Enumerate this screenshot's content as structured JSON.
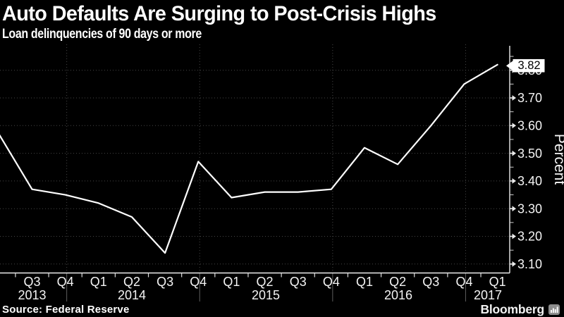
{
  "header": {
    "title": "Auto Defaults Are Surging to Post-Crisis Highs",
    "subtitle": "Loan delinquencies of 90 days or more"
  },
  "footer": {
    "source": "Source: Federal Reserve",
    "attribution": "Bloomberg"
  },
  "chart_data": {
    "type": "line",
    "title": "Auto Defaults Are Surging to Post-Crisis Highs",
    "subtitle": "Loan delinquencies of 90 days or more",
    "ylabel": "Percent",
    "x": [
      "Q2 2013",
      "Q3 2013",
      "Q4 2013",
      "Q1 2014",
      "Q2 2014",
      "Q3 2014",
      "Q4 2014",
      "Q1 2015",
      "Q2 2015",
      "Q3 2015",
      "Q4 2015",
      "Q1 2016",
      "Q2 2016",
      "Q3 2016",
      "Q4 2016",
      "Q1 2017"
    ],
    "values": [
      3.57,
      3.37,
      3.35,
      3.32,
      3.27,
      3.14,
      3.47,
      3.34,
      3.36,
      3.36,
      3.37,
      3.52,
      3.46,
      3.6,
      3.75,
      3.82
    ],
    "first_point_clipped_at_left_edge": true,
    "x_tick_quarter_labels": [
      "Q3",
      "Q4",
      "Q1",
      "Q2",
      "Q3",
      "Q4",
      "Q1",
      "Q2",
      "Q3",
      "Q4",
      "Q1",
      "Q2",
      "Q3",
      "Q4",
      "Q1"
    ],
    "x_tick_year_labels": [
      "2013",
      "2014",
      "2015",
      "2016",
      "2017"
    ],
    "y_major_ticks": [
      3.1,
      3.2,
      3.3,
      3.4,
      3.5,
      3.6,
      3.7,
      3.8
    ],
    "y_minor_ticks": [
      3.15,
      3.25,
      3.35,
      3.45,
      3.55,
      3.65,
      3.75,
      3.85
    ],
    "ylim": [
      3.07,
      3.89
    ],
    "last_value_flag": "3.82",
    "legend": "none",
    "grid": {
      "horizontal": "dotted at major ticks",
      "vertical": "year separators"
    },
    "colors": {
      "background": "#000000",
      "line": "#ffffff",
      "axis": "#ececec",
      "grid": "#464646",
      "text": "#f4f4f4",
      "flag_bg": "#ffffff",
      "flag_text": "#000000"
    }
  }
}
